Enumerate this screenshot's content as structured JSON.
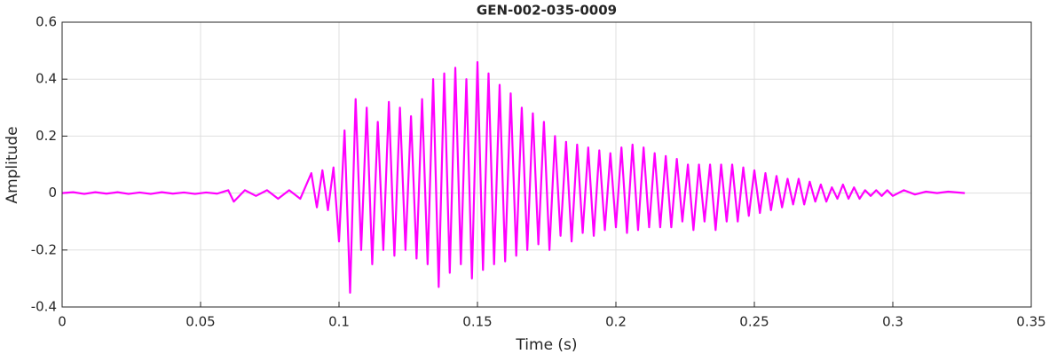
{
  "chart_data": {
    "type": "line",
    "title": "GEN-002-035-0009",
    "x_label": "Time (s)",
    "y_label": "Amplitude",
    "xlim": [
      0,
      0.35
    ],
    "ylim": [
      -0.4,
      0.6
    ],
    "xticks": [
      0,
      0.05,
      0.1,
      0.15,
      0.2,
      0.25,
      0.3,
      0.35
    ],
    "yticks": [
      -0.4,
      -0.2,
      0,
      0.2,
      0.4,
      0.6
    ],
    "grid": true,
    "series": [
      {
        "color": "#ff00ff",
        "x": [
          0,
          0.004,
          0.008,
          0.012,
          0.016,
          0.02,
          0.024,
          0.028,
          0.032,
          0.036,
          0.04,
          0.044,
          0.048,
          0.052,
          0.056,
          0.06,
          0.062,
          0.066,
          0.07,
          0.074,
          0.078,
          0.082,
          0.086,
          0.09,
          0.092,
          0.094,
          0.096,
          0.098,
          0.1,
          0.102,
          0.104,
          0.106,
          0.108,
          0.11,
          0.112,
          0.114,
          0.116,
          0.118,
          0.12,
          0.122,
          0.124,
          0.126,
          0.128,
          0.13,
          0.132,
          0.134,
          0.136,
          0.138,
          0.14,
          0.142,
          0.144,
          0.146,
          0.148,
          0.15,
          0.152,
          0.154,
          0.156,
          0.158,
          0.16,
          0.162,
          0.164,
          0.166,
          0.168,
          0.17,
          0.172,
          0.174,
          0.176,
          0.178,
          0.18,
          0.182,
          0.184,
          0.186,
          0.188,
          0.19,
          0.192,
          0.194,
          0.196,
          0.198,
          0.2,
          0.202,
          0.204,
          0.206,
          0.208,
          0.21,
          0.212,
          0.214,
          0.216,
          0.218,
          0.22,
          0.222,
          0.224,
          0.226,
          0.228,
          0.23,
          0.232,
          0.234,
          0.236,
          0.238,
          0.24,
          0.242,
          0.244,
          0.246,
          0.248,
          0.25,
          0.252,
          0.254,
          0.256,
          0.258,
          0.26,
          0.262,
          0.264,
          0.266,
          0.268,
          0.27,
          0.272,
          0.274,
          0.276,
          0.278,
          0.28,
          0.282,
          0.284,
          0.286,
          0.288,
          0.29,
          0.292,
          0.294,
          0.296,
          0.298,
          0.3,
          0.304,
          0.308,
          0.312,
          0.316,
          0.32,
          0.326
        ],
        "values": [
          0,
          0.003,
          -0.003,
          0.003,
          -0.002,
          0.003,
          -0.003,
          0.002,
          -0.003,
          0.003,
          -0.002,
          0.002,
          -0.003,
          0.002,
          -0.002,
          0.01,
          -0.03,
          0.01,
          -0.01,
          0.01,
          -0.02,
          0.01,
          -0.02,
          0.07,
          -0.05,
          0.08,
          -0.06,
          0.09,
          -0.17,
          0.22,
          -0.35,
          0.33,
          -0.2,
          0.3,
          -0.25,
          0.25,
          -0.2,
          0.32,
          -0.22,
          0.3,
          -0.2,
          0.27,
          -0.23,
          0.33,
          -0.25,
          0.4,
          -0.33,
          0.42,
          -0.28,
          0.44,
          -0.25,
          0.4,
          -0.3,
          0.46,
          -0.27,
          0.42,
          -0.25,
          0.38,
          -0.24,
          0.35,
          -0.22,
          0.3,
          -0.2,
          0.28,
          -0.18,
          0.25,
          -0.2,
          0.2,
          -0.15,
          0.18,
          -0.17,
          0.17,
          -0.14,
          0.16,
          -0.15,
          0.15,
          -0.13,
          0.14,
          -0.12,
          0.16,
          -0.14,
          0.17,
          -0.13,
          0.16,
          -0.12,
          0.14,
          -0.12,
          0.13,
          -0.12,
          0.12,
          -0.1,
          0.1,
          -0.13,
          0.1,
          -0.1,
          0.1,
          -0.13,
          0.1,
          -0.1,
          0.1,
          -0.1,
          0.09,
          -0.08,
          0.08,
          -0.07,
          0.07,
          -0.06,
          0.06,
          -0.05,
          0.05,
          -0.04,
          0.05,
          -0.04,
          0.04,
          -0.03,
          0.03,
          -0.03,
          0.02,
          -0.02,
          0.03,
          -0.02,
          0.02,
          -0.02,
          0.01,
          -0.01,
          0.01,
          -0.01,
          0.01,
          -0.01,
          0.01,
          -0.005,
          0.005,
          0,
          0.005,
          0
        ]
      }
    ]
  }
}
